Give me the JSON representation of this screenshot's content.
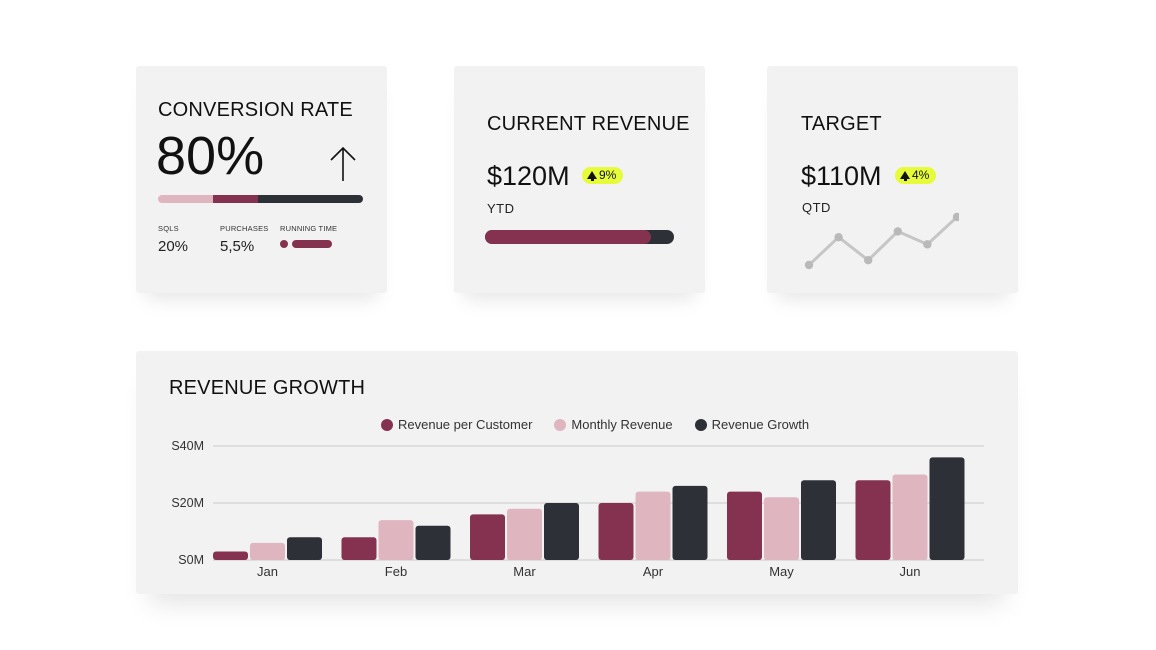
{
  "conversion": {
    "title": "CONVERSION RATE",
    "value": "80%",
    "progress_segments": [
      {
        "color": "#dfb5c0",
        "fraction": 0.27
      },
      {
        "color": "#84324f",
        "fraction": 0.22
      },
      {
        "color": "#2e3037",
        "fraction": 0.51
      }
    ],
    "stats": [
      {
        "label": "SQLS",
        "value": "20%"
      },
      {
        "label": "PURCHASES",
        "value": "5,5%"
      },
      {
        "label": "RUNNING TIME",
        "value": ""
      }
    ]
  },
  "revenue": {
    "title": "CURRENT REVENUE",
    "amount": "$120M",
    "badge": "9%",
    "period": "YTD",
    "progress": 0.88
  },
  "target": {
    "title": "TARGET",
    "amount": "$110M",
    "badge": "4%",
    "period": "QTD",
    "sparkline": [
      0.0,
      0.58,
      0.1,
      0.7,
      0.43,
      1.0
    ]
  },
  "colors": {
    "maroon": "#84324f",
    "pink": "#dfb5c0",
    "dark": "#2e3037",
    "badge": "#e6fb3a",
    "card": "#f2f2f2"
  },
  "chart_data": {
    "type": "bar",
    "title": "REVENUE GROWTH",
    "categories": [
      "Jan",
      "Feb",
      "Mar",
      "Apr",
      "May",
      "Jun"
    ],
    "series": [
      {
        "name": "Revenue per Customer",
        "color": "#84324f",
        "values": [
          3,
          8,
          16,
          20,
          24,
          28
        ]
      },
      {
        "name": "Monthly Revenue",
        "color": "#dfb5c0",
        "values": [
          6,
          14,
          18,
          24,
          22,
          30
        ]
      },
      {
        "name": "Revenue Growth",
        "color": "#2e3037",
        "values": [
          8,
          12,
          20,
          26,
          28,
          36
        ]
      }
    ],
    "yticks": [
      {
        "value": 0,
        "label": "S0M"
      },
      {
        "value": 20,
        "label": "S20M"
      },
      {
        "value": 40,
        "label": "S40M"
      }
    ],
    "ylim": [
      0,
      40
    ],
    "grid": true,
    "legend": "top-center"
  }
}
